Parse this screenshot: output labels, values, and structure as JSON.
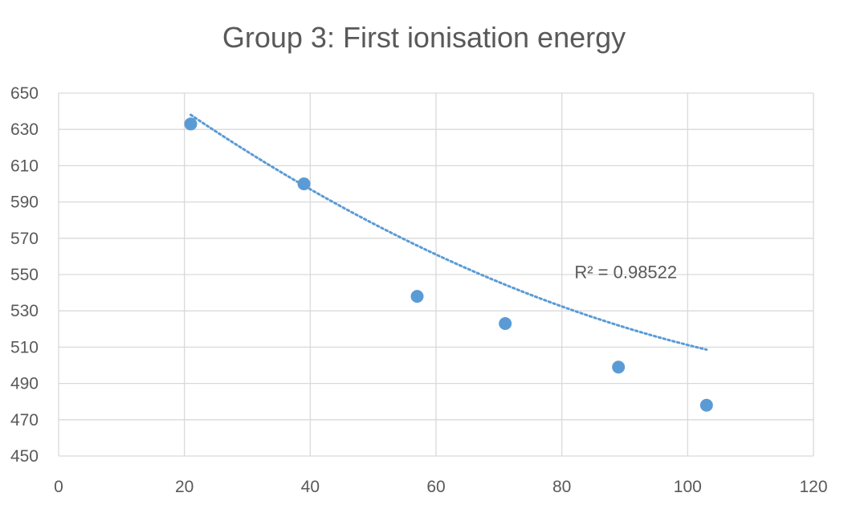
{
  "chart_data": {
    "type": "scatter",
    "title": "Group 3: First ionisation energy",
    "xlabel": "",
    "ylabel": "",
    "xlim": [
      0,
      120
    ],
    "ylim": [
      450,
      650
    ],
    "xticks": [
      0,
      20,
      40,
      60,
      80,
      100,
      120
    ],
    "yticks": [
      450,
      470,
      490,
      510,
      530,
      550,
      570,
      590,
      610,
      630,
      650
    ],
    "grid": true,
    "series": [
      {
        "color": "#5B9BD5",
        "points": [
          {
            "x": 21,
            "y": 633
          },
          {
            "x": 39,
            "y": 600
          },
          {
            "x": 57,
            "y": 538
          },
          {
            "x": 71,
            "y": 523
          },
          {
            "x": 89,
            "y": 499
          },
          {
            "x": 103,
            "y": 478
          }
        ]
      }
    ],
    "trendline": {
      "type": "polynomial-2",
      "style": "dotted",
      "color": "#5B9BD5",
      "x_range": [
        21,
        103
      ],
      "coefficients": [
        0.00921,
        -2.72,
        691.1
      ],
      "annotation": "R² = 0.98522",
      "annotation_position": {
        "x": 82,
        "y": 548
      }
    }
  }
}
